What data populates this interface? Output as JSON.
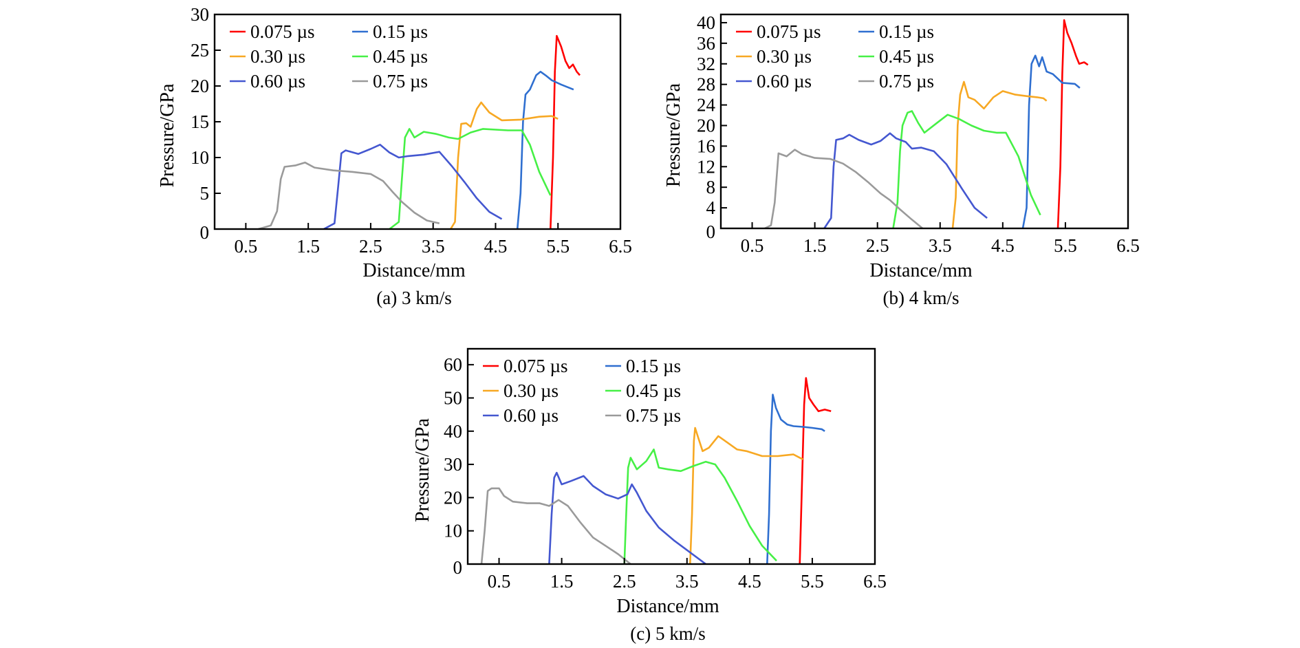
{
  "figure": {
    "series_names": [
      "0.075 µs",
      "0.15 µs",
      "0.30 µs",
      "0.45 µs",
      "0.60 µs",
      "0.75 µs"
    ],
    "series_colors": [
      "#ff0000",
      "#2f6fd0",
      "#f7a823",
      "#46f046",
      "#4457d0",
      "#9a9a9a"
    ]
  },
  "chart_data": [
    {
      "type": "line",
      "caption": "(a) 3 km/s",
      "xlabel": "Distance/mm",
      "ylabel": "Pressure/GPa",
      "xlim": [
        0,
        6.5
      ],
      "ylim": [
        0,
        30
      ],
      "xticks": [
        "0.5",
        "1.5",
        "2.5",
        "3.5",
        "4.5",
        "5.5",
        "6.5"
      ],
      "xtick_values": [
        0.5,
        1.5,
        2.5,
        3.5,
        4.5,
        5.5,
        6.5
      ],
      "yticks": [
        "0",
        "5",
        "10",
        "15",
        "20",
        "25",
        "30"
      ],
      "ytick_values": [
        0,
        5,
        10,
        15,
        20,
        25,
        30
      ],
      "legend": "top-left, 2 columns",
      "grid": false,
      "series": [
        {
          "name": "0.075 µs",
          "x": [
            5.38,
            5.42,
            5.45,
            5.48,
            5.55,
            5.62,
            5.68,
            5.74,
            5.8,
            5.85
          ],
          "y": [
            0,
            10,
            22,
            27,
            25.5,
            23.5,
            22.5,
            23,
            22,
            21.5
          ]
        },
        {
          "name": "0.15 µs",
          "x": [
            4.85,
            4.9,
            4.94,
            4.98,
            5.05,
            5.15,
            5.22,
            5.3,
            5.4,
            5.55,
            5.75
          ],
          "y": [
            0,
            5,
            15,
            18.8,
            19.5,
            21.5,
            22,
            21.5,
            20.8,
            20.2,
            19.5
          ]
        },
        {
          "name": "0.30 µs",
          "x": [
            3.78,
            3.85,
            3.9,
            3.95,
            4.03,
            4.1,
            4.2,
            4.27,
            4.4,
            4.6,
            4.9,
            5.2,
            5.4,
            5.5
          ],
          "y": [
            0,
            1,
            10,
            14.7,
            14.8,
            14.3,
            16.8,
            17.7,
            16.3,
            15.2,
            15.3,
            15.7,
            15.8,
            15.4
          ]
        },
        {
          "name": "0.45 µs",
          "x": [
            2.8,
            2.95,
            3.0,
            3.05,
            3.12,
            3.2,
            3.35,
            3.55,
            3.75,
            3.9,
            4.1,
            4.3,
            4.7,
            4.92,
            5.05,
            5.2,
            5.38
          ],
          "y": [
            0,
            1,
            7,
            12.8,
            14,
            12.8,
            13.6,
            13.3,
            12.8,
            12.6,
            13.5,
            14,
            13.8,
            13.8,
            11.8,
            8,
            4.7
          ]
        },
        {
          "name": "0.60 µs",
          "x": [
            1.75,
            1.92,
            1.98,
            2.03,
            2.1,
            2.3,
            2.5,
            2.65,
            2.8,
            2.95,
            3.1,
            3.35,
            3.6,
            3.8,
            4.0,
            4.2,
            4.4,
            4.6
          ],
          "y": [
            0,
            0.8,
            6,
            10.6,
            11,
            10.5,
            11.2,
            11.8,
            10.7,
            10,
            10.2,
            10.4,
            10.8,
            8.8,
            6.6,
            4.3,
            2.4,
            1.4
          ]
        },
        {
          "name": "0.75 µs",
          "x": [
            0.7,
            0.9,
            1.0,
            1.06,
            1.12,
            1.3,
            1.45,
            1.6,
            1.9,
            2.2,
            2.5,
            2.7,
            2.85,
            3.0,
            3.2,
            3.4,
            3.6
          ],
          "y": [
            0,
            0.5,
            2.5,
            7,
            8.7,
            8.9,
            9.3,
            8.6,
            8.2,
            8.0,
            7.7,
            6.7,
            5.2,
            3.8,
            2.3,
            1.2,
            0.8
          ]
        }
      ]
    },
    {
      "type": "line",
      "caption": "(b) 4 km/s",
      "xlabel": "Distance/mm",
      "ylabel": "Pressure/GPa",
      "xlim": [
        0,
        6.5
      ],
      "ylim": [
        0,
        41.6
      ],
      "xticks": [
        "0.5",
        "1.5",
        "2.5",
        "3.5",
        "4.5",
        "5.5",
        "6.5"
      ],
      "xtick_values": [
        0.5,
        1.5,
        2.5,
        3.5,
        4.5,
        5.5,
        6.5
      ],
      "yticks": [
        "0",
        "4",
        "8",
        "12",
        "16",
        "20",
        "24",
        "28",
        "32",
        "36",
        "40"
      ],
      "ytick_values": [
        0,
        4,
        8,
        12,
        16,
        20,
        24,
        28,
        32,
        36,
        40
      ],
      "legend": "top-left, 2 columns",
      "grid": false,
      "series": [
        {
          "name": "0.075 µs",
          "x": [
            5.38,
            5.42,
            5.45,
            5.48,
            5.53,
            5.6,
            5.67,
            5.72,
            5.8,
            5.86
          ],
          "y": [
            0,
            12,
            30,
            40.5,
            38,
            36,
            33.5,
            32,
            32.3,
            31.8
          ]
        },
        {
          "name": "0.15 µs",
          "x": [
            4.82,
            4.88,
            4.92,
            4.96,
            5.02,
            5.08,
            5.13,
            5.2,
            5.3,
            5.45,
            5.55,
            5.65,
            5.73
          ],
          "y": [
            0,
            4,
            24,
            32,
            33.6,
            31.5,
            33.3,
            30.5,
            30,
            28.3,
            28.2,
            28.1,
            27.3
          ]
        },
        {
          "name": "0.30 µs",
          "x": [
            3.7,
            3.75,
            3.78,
            3.82,
            3.88,
            3.95,
            4.05,
            4.2,
            4.35,
            4.5,
            4.7,
            4.9,
            5.05,
            5.15,
            5.2
          ],
          "y": [
            0,
            6,
            20,
            26,
            28.5,
            25.5,
            25,
            23.3,
            25.5,
            26.7,
            26,
            25.7,
            25.5,
            25.3,
            24.8
          ]
        },
        {
          "name": "0.45 µs",
          "x": [
            2.75,
            2.82,
            2.86,
            2.9,
            2.98,
            3.05,
            3.15,
            3.25,
            3.45,
            3.62,
            3.8,
            4.0,
            4.2,
            4.4,
            4.55,
            4.75,
            4.95,
            5.1
          ],
          "y": [
            0,
            5,
            15,
            20,
            22.5,
            22.8,
            20.5,
            18.6,
            20.5,
            22.1,
            21.3,
            20,
            19,
            18.6,
            18.6,
            14,
            6.5,
            2.6
          ]
        },
        {
          "name": "0.60 µs",
          "x": [
            1.65,
            1.76,
            1.8,
            1.84,
            1.95,
            2.05,
            2.2,
            2.4,
            2.55,
            2.7,
            2.8,
            2.95,
            3.05,
            3.2,
            3.4,
            3.6,
            3.85,
            4.05,
            4.25
          ],
          "y": [
            0,
            2,
            12,
            17.2,
            17.5,
            18.2,
            17.2,
            16.3,
            17,
            18.5,
            17.5,
            16.8,
            15.5,
            15.7,
            15,
            12.5,
            7.7,
            4,
            2
          ]
        },
        {
          "name": "0.75 µs",
          "x": [
            0.7,
            0.8,
            0.86,
            0.92,
            1.05,
            1.18,
            1.3,
            1.5,
            1.75,
            1.95,
            2.15,
            2.35,
            2.55,
            2.7,
            2.85,
            3.05,
            3.22
          ],
          "y": [
            0,
            0.6,
            5,
            14.6,
            14,
            15.3,
            14.4,
            13.7,
            13.5,
            12.6,
            11,
            9,
            6.8,
            5.5,
            3.8,
            1.7,
            0
          ]
        }
      ]
    },
    {
      "type": "line",
      "caption": "(c) 5 km/s",
      "xlabel": "Distance/mm",
      "ylabel": "Pressure/GPa",
      "xlim": [
        0,
        6.5
      ],
      "ylim": [
        0,
        64.8
      ],
      "xticks": [
        "0.5",
        "1.5",
        "2.5",
        "3.5",
        "4.5",
        "5.5",
        "6.5"
      ],
      "xtick_values": [
        0.5,
        1.5,
        2.5,
        3.5,
        4.5,
        5.5,
        6.5
      ],
      "yticks": [
        "0",
        "10",
        "20",
        "30",
        "40",
        "50",
        "60"
      ],
      "ytick_values": [
        0,
        10,
        20,
        30,
        40,
        50,
        60
      ],
      "legend": "top-left, 2 columns",
      "grid": false,
      "series": [
        {
          "name": "0.075 µs",
          "x": [
            5.3,
            5.33,
            5.37,
            5.4,
            5.45,
            5.52,
            5.6,
            5.7,
            5.8
          ],
          "y": [
            0,
            20,
            48,
            56,
            50,
            48,
            46,
            46.5,
            46
          ]
        },
        {
          "name": "0.15 µs",
          "x": [
            4.78,
            4.81,
            4.84,
            4.87,
            4.92,
            5.0,
            5.1,
            5.2,
            5.35,
            5.5,
            5.65,
            5.7
          ],
          "y": [
            0,
            15,
            40,
            51,
            47,
            43.5,
            42,
            41.5,
            41.3,
            41,
            40.6,
            40
          ]
        },
        {
          "name": "0.30 µs",
          "x": [
            3.55,
            3.58,
            3.61,
            3.63,
            3.68,
            3.75,
            3.85,
            4.0,
            4.15,
            4.3,
            4.45,
            4.7,
            4.95,
            5.2,
            5.35
          ],
          "y": [
            0,
            15,
            37,
            41,
            38,
            34,
            35,
            38.5,
            36.5,
            34.5,
            34,
            32.5,
            32.5,
            33,
            31.5
          ]
        },
        {
          "name": "0.45 µs",
          "x": [
            2.5,
            2.53,
            2.56,
            2.6,
            2.7,
            2.85,
            2.97,
            3.05,
            3.2,
            3.4,
            3.6,
            3.8,
            3.95,
            4.1,
            4.3,
            4.5,
            4.7,
            4.93
          ],
          "y": [
            0,
            15,
            29,
            32,
            28.5,
            31,
            34.5,
            29,
            28.5,
            28,
            29.5,
            30.8,
            30,
            26,
            19,
            11.5,
            5.5,
            1
          ]
        },
        {
          "name": "0.60 µs",
          "x": [
            1.3,
            1.34,
            1.38,
            1.42,
            1.5,
            1.65,
            1.85,
            2.0,
            2.2,
            2.4,
            2.55,
            2.62,
            2.7,
            2.85,
            3.05,
            3.3,
            3.55,
            3.8
          ],
          "y": [
            0,
            15,
            26,
            27.5,
            24,
            25,
            26.5,
            23.5,
            21,
            19.7,
            21,
            24,
            21.5,
            16,
            11,
            7,
            3.5,
            0
          ]
        },
        {
          "name": "0.75 µs",
          "x": [
            0.22,
            0.27,
            0.32,
            0.38,
            0.5,
            0.58,
            0.72,
            0.95,
            1.15,
            1.3,
            1.45,
            1.6,
            1.8,
            2.0,
            2.2,
            2.4,
            2.6
          ],
          "y": [
            0,
            10,
            22,
            22.8,
            22.8,
            20.5,
            18.8,
            18.3,
            18.3,
            17.5,
            19.3,
            17.5,
            12.5,
            8,
            5.5,
            3,
            0
          ]
        }
      ]
    }
  ]
}
